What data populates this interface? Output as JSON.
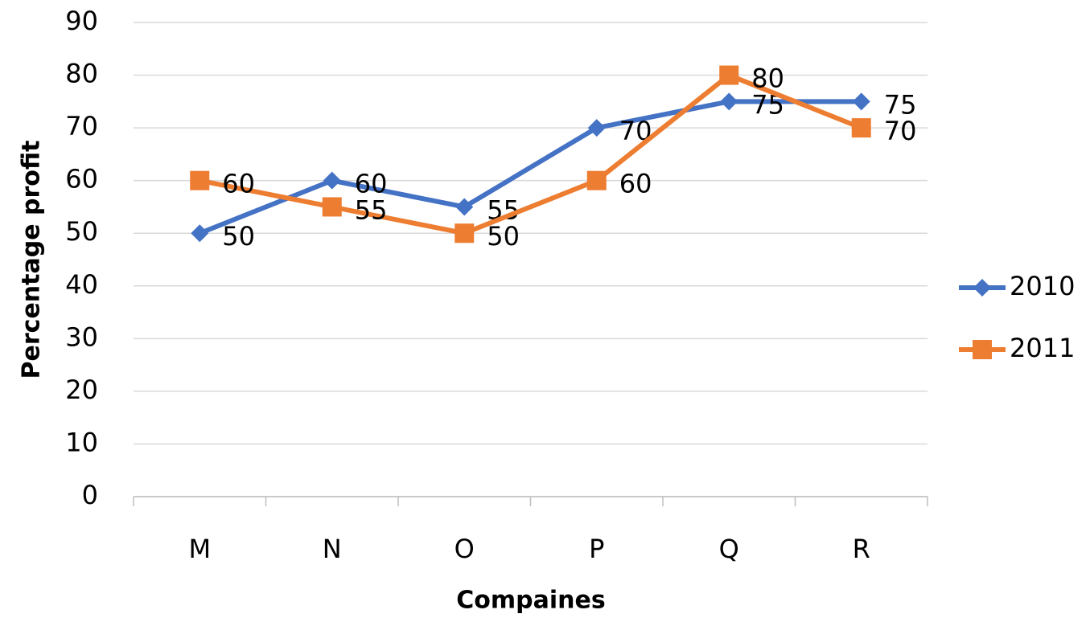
{
  "chart_data": {
    "type": "line",
    "x_label": "Compaines",
    "y_label": "Percentage profit",
    "categories": [
      "M",
      "N",
      "O",
      "P",
      "Q",
      "R"
    ],
    "series": [
      {
        "name": "2010",
        "color": "#4472c4",
        "values": [
          50,
          60,
          55,
          70,
          75,
          75
        ]
      },
      {
        "name": "2011",
        "color": "#ed7d31",
        "values": [
          60,
          55,
          50,
          60,
          80,
          70
        ]
      }
    ],
    "ylim": [
      0,
      90
    ],
    "yticks": [
      0,
      10,
      20,
      30,
      40,
      50,
      60,
      70,
      80,
      90
    ],
    "grid": true,
    "legend": "right",
    "data_labels": true
  }
}
